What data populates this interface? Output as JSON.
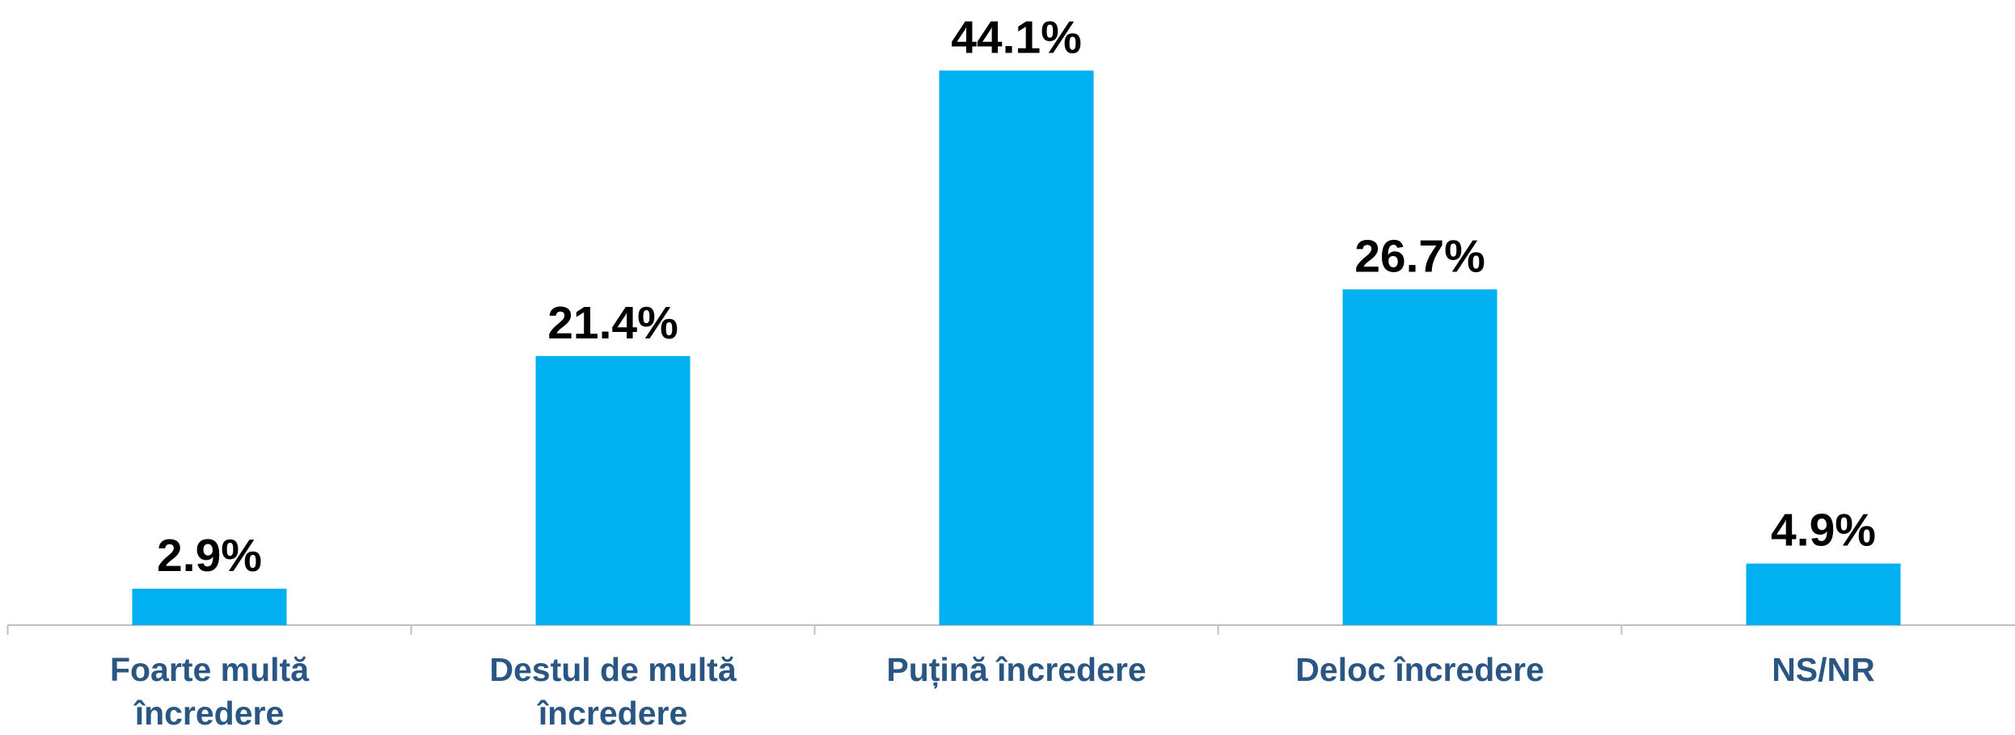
{
  "chart_data": {
    "type": "bar",
    "categories": [
      "Foarte multă încredere",
      "Destul de multă încredere",
      "Puțină încredere",
      "Deloc încredere",
      "NS/NR"
    ],
    "values": [
      2.9,
      21.4,
      44.1,
      26.7,
      4.9
    ],
    "value_labels": [
      "2.9%",
      "21.4%",
      "44.1%",
      "26.7%",
      "4.9%"
    ],
    "color": "#00b0f0"
  }
}
